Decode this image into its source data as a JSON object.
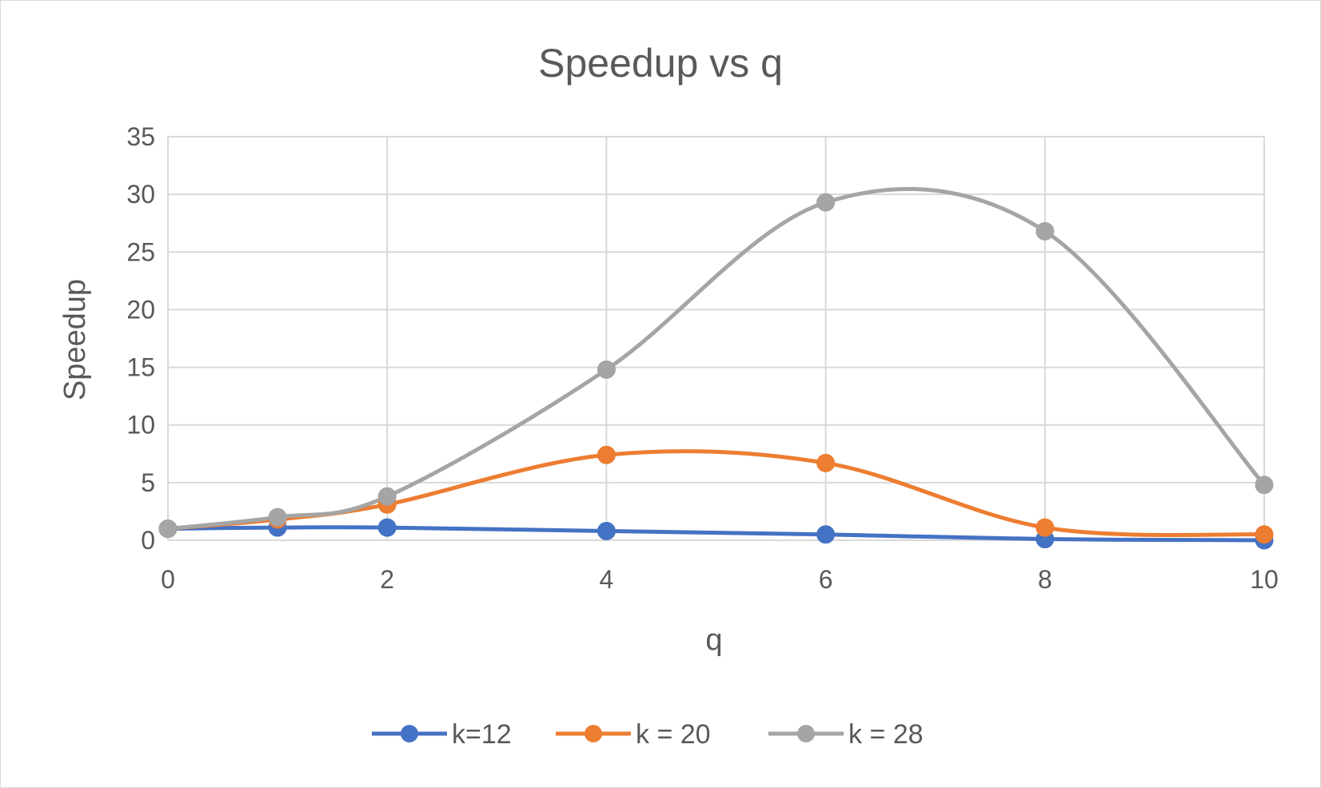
{
  "chart_data": {
    "type": "line",
    "title": "Speedup vs q",
    "xlabel": "q",
    "ylabel": "Speedup",
    "xlim": [
      0,
      10
    ],
    "ylim": [
      0,
      35
    ],
    "x_ticks": [
      0,
      2,
      4,
      6,
      8,
      10
    ],
    "y_ticks": [
      0,
      5,
      10,
      15,
      20,
      25,
      30,
      35
    ],
    "grid": true,
    "smooth": true,
    "legend_position": "bottom",
    "series": [
      {
        "name": "k=12",
        "color": "#4472c4",
        "points": [
          [
            0,
            1.0
          ],
          [
            1,
            1.1
          ],
          [
            2,
            1.1
          ],
          [
            4,
            0.8
          ],
          [
            6,
            0.5
          ],
          [
            8,
            0.1
          ],
          [
            10,
            0.0
          ]
        ]
      },
      {
        "name": "k = 20",
        "color": "#ed7d31",
        "points": [
          [
            0,
            1.0
          ],
          [
            1,
            1.8
          ],
          [
            2,
            3.1
          ],
          [
            4,
            7.4
          ],
          [
            6,
            6.7
          ],
          [
            8,
            1.1
          ],
          [
            10,
            0.5
          ]
        ]
      },
      {
        "name": "k = 28",
        "color": "#a5a5a5",
        "points": [
          [
            0,
            1.0
          ],
          [
            1,
            2.0
          ],
          [
            2,
            3.8
          ],
          [
            4,
            14.8
          ],
          [
            6,
            29.3
          ],
          [
            8,
            26.8
          ],
          [
            10,
            4.8
          ]
        ]
      }
    ]
  }
}
